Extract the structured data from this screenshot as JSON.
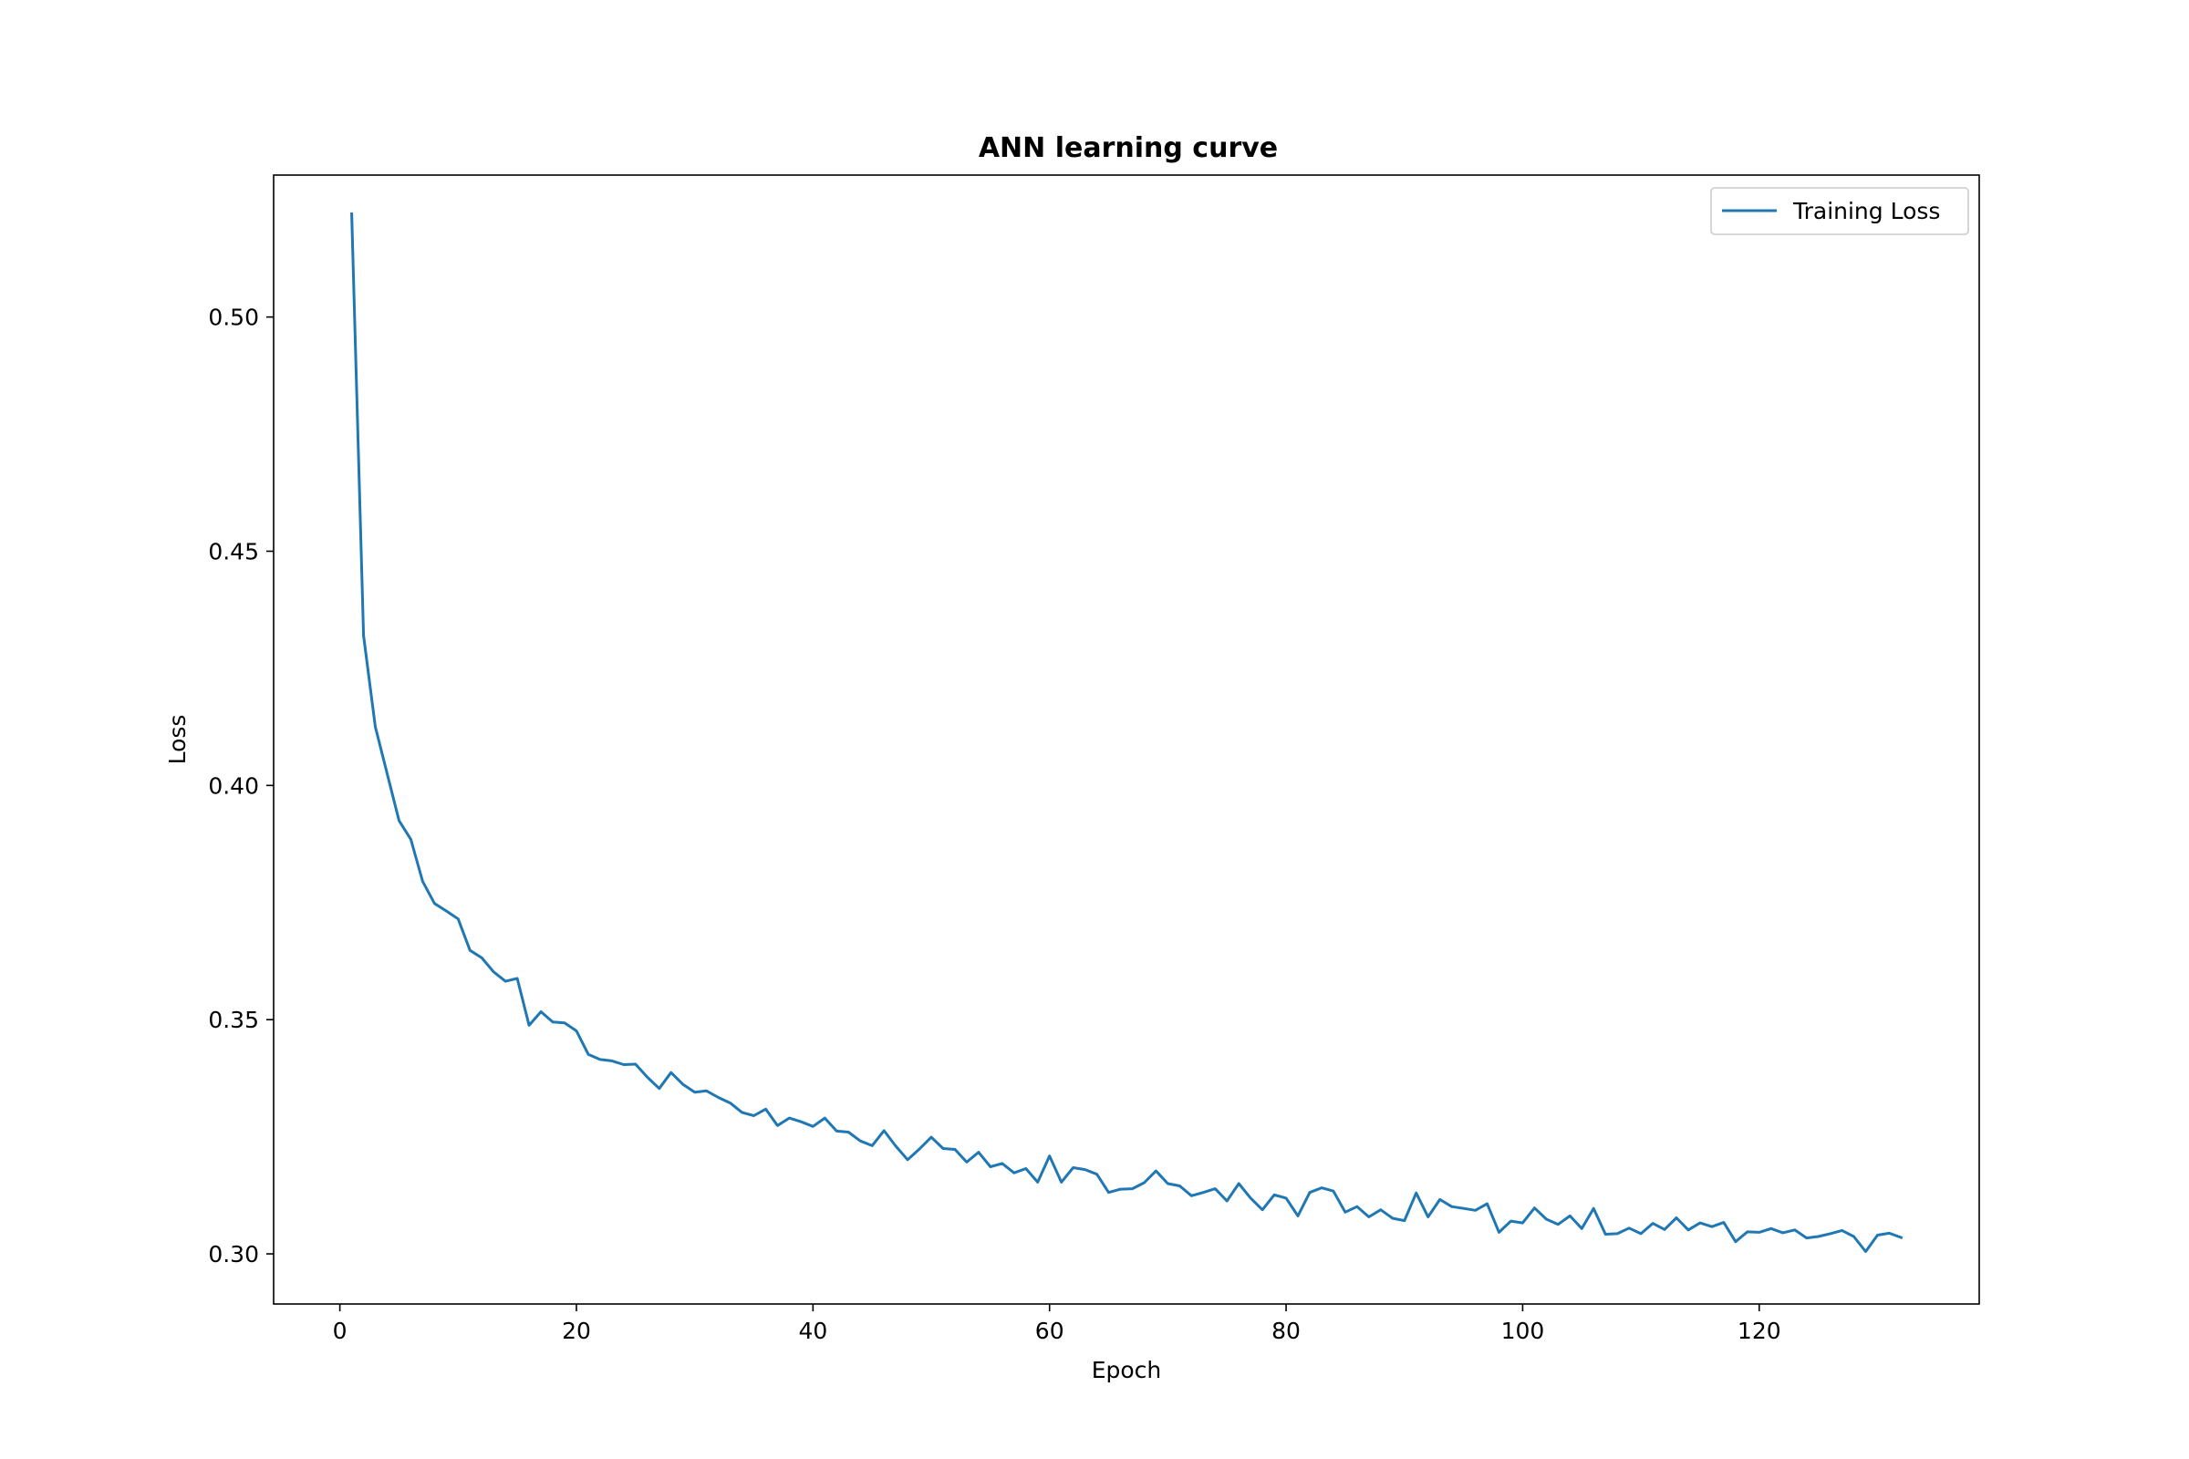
{
  "chart_data": {
    "type": "line",
    "title": "ANN learning curve",
    "xlabel": "Epoch",
    "ylabel": "Loss",
    "xlim": [
      -5.6,
      138.6
    ],
    "ylim": [
      0.2893,
      0.5303
    ],
    "xticks": [
      0,
      20,
      40,
      60,
      80,
      100,
      120
    ],
    "yticks": [
      0.3,
      0.35,
      0.4,
      0.45,
      0.5
    ],
    "ytick_labels": [
      "0.30",
      "0.35",
      "0.40",
      "0.45",
      "0.50"
    ],
    "grid": false,
    "legend_position": "top-right",
    "series": [
      {
        "name": "Training Loss",
        "color": "#1f77b4",
        "x": [
          1,
          2,
          3,
          4,
          5,
          6,
          7,
          8,
          9,
          10,
          11,
          12,
          13,
          14,
          15,
          16,
          17,
          18,
          19,
          20,
          21,
          22,
          23,
          24,
          25,
          26,
          27,
          28,
          29,
          30,
          31,
          32,
          33,
          34,
          35,
          36,
          37,
          38,
          39,
          40,
          41,
          42,
          43,
          44,
          45,
          46,
          47,
          48,
          49,
          50,
          51,
          52,
          53,
          54,
          55,
          56,
          57,
          58,
          59,
          60,
          61,
          62,
          63,
          64,
          65,
          66,
          67,
          68,
          69,
          70,
          71,
          72,
          73,
          74,
          75,
          76,
          77,
          78,
          79,
          80,
          81,
          82,
          83,
          84,
          85,
          86,
          87,
          88,
          89,
          90,
          91,
          92,
          93,
          94,
          95,
          96,
          97,
          98,
          99,
          100,
          101,
          102,
          103,
          104,
          105,
          106,
          107,
          108,
          109,
          110,
          111,
          112,
          113,
          114,
          115,
          116,
          117,
          118,
          119,
          120,
          121,
          122,
          123,
          124,
          125,
          126,
          127,
          128,
          129,
          130,
          131,
          132
        ],
        "values": [
          0.522,
          0.432,
          0.4125,
          0.4025,
          0.3925,
          0.3885,
          0.3795,
          0.3748,
          0.3732,
          0.3715,
          0.3648,
          0.3632,
          0.3602,
          0.3582,
          0.3588,
          0.3488,
          0.3517,
          0.3495,
          0.3493,
          0.3476,
          0.3426,
          0.3415,
          0.3412,
          0.3404,
          0.3405,
          0.3377,
          0.3353,
          0.3387,
          0.3362,
          0.3345,
          0.3348,
          0.3334,
          0.3322,
          0.3302,
          0.3295,
          0.3309,
          0.3274,
          0.329,
          0.3282,
          0.3272,
          0.329,
          0.3262,
          0.326,
          0.3241,
          0.3231,
          0.3263,
          0.323,
          0.3201,
          0.3224,
          0.3249,
          0.3225,
          0.3223,
          0.3196,
          0.3217,
          0.3186,
          0.3193,
          0.3173,
          0.3182,
          0.3153,
          0.3209,
          0.3153,
          0.3184,
          0.318,
          0.317,
          0.3131,
          0.3138,
          0.3139,
          0.3152,
          0.3177,
          0.315,
          0.3145,
          0.3124,
          0.3131,
          0.3139,
          0.3113,
          0.315,
          0.3119,
          0.3094,
          0.3126,
          0.3119,
          0.3081,
          0.3131,
          0.3141,
          0.3134,
          0.3089,
          0.3101,
          0.3079,
          0.3094,
          0.3076,
          0.3071,
          0.313,
          0.3079,
          0.3116,
          0.3101,
          0.3097,
          0.3093,
          0.3107,
          0.3046,
          0.307,
          0.3066,
          0.3098,
          0.3074,
          0.3063,
          0.3081,
          0.3054,
          0.3097,
          0.3042,
          0.3043,
          0.3055,
          0.3043,
          0.3065,
          0.3052,
          0.3077,
          0.3051,
          0.3066,
          0.3058,
          0.3067,
          0.3026,
          0.3047,
          0.3046,
          0.3054,
          0.3045,
          0.3051,
          0.3034,
          0.3037,
          0.3043,
          0.305,
          0.3037,
          0.3005,
          0.304,
          0.3044,
          0.3035
        ]
      }
    ]
  }
}
